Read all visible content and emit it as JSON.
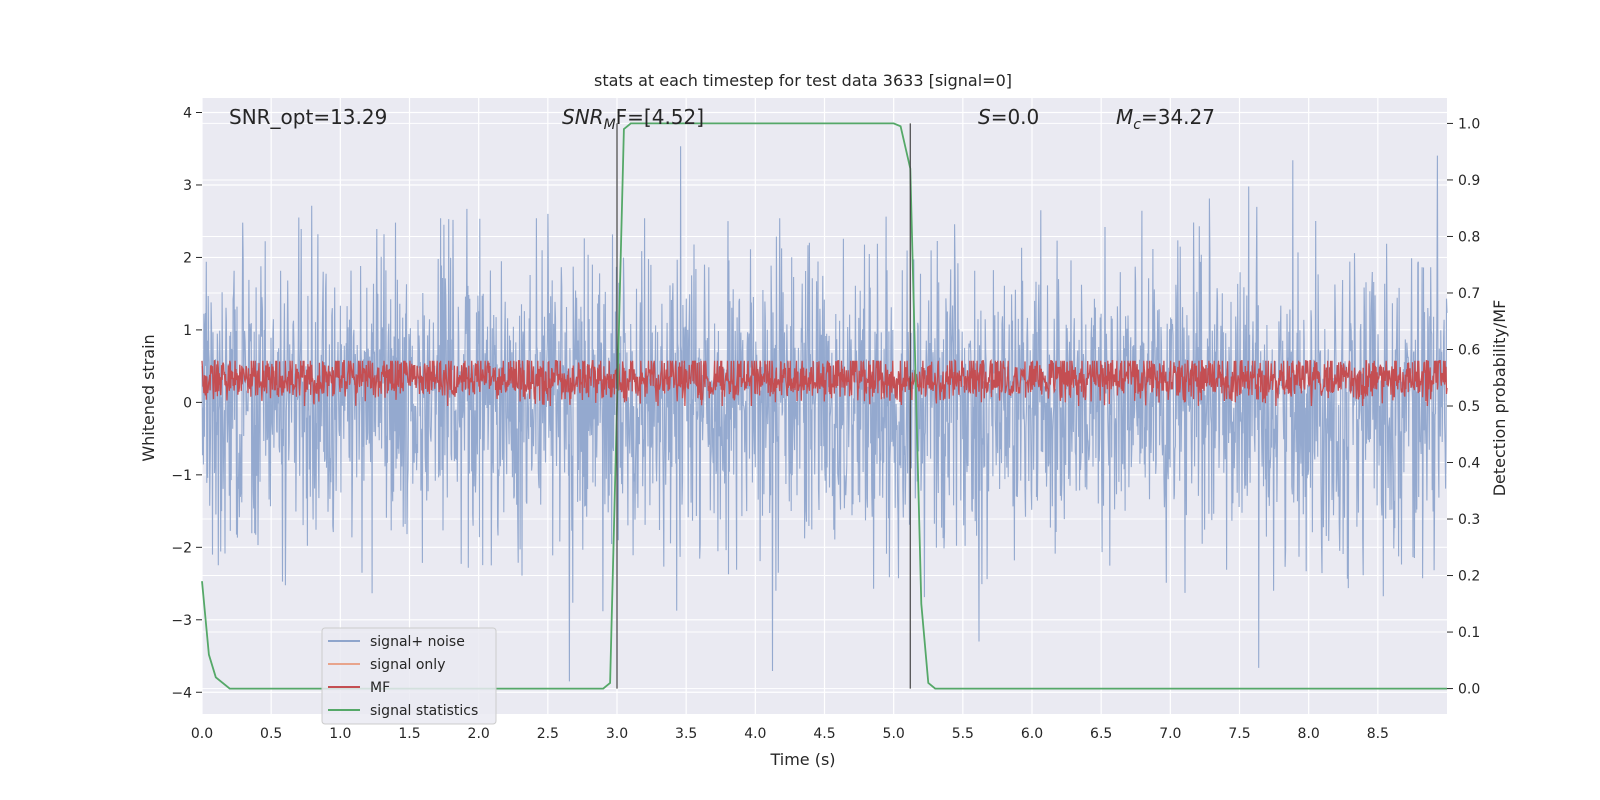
{
  "chart_data": {
    "type": "line",
    "title": "stats at each timestep for test data 3633 [signal=0]",
    "xlabel": "Time (s)",
    "ylabel": "Whitened strain",
    "y2label": "Detection probability/MF",
    "xlim": [
      0.0,
      9.0
    ],
    "ylim": [
      -4.3,
      4.2
    ],
    "y2lim": [
      -0.045,
      1.045
    ],
    "xticks": [
      "0.0",
      "0.5",
      "1.0",
      "1.5",
      "2.0",
      "2.5",
      "3.0",
      "3.5",
      "4.0",
      "4.5",
      "5.0",
      "5.5",
      "6.0",
      "6.5",
      "7.0",
      "7.5",
      "8.0",
      "8.5"
    ],
    "xtick_values": [
      0,
      0.5,
      1,
      1.5,
      2,
      2.5,
      3,
      3.5,
      4,
      4.5,
      5,
      5.5,
      6,
      6.5,
      7,
      7.5,
      8,
      8.5
    ],
    "yticks": [
      "4",
      "3",
      "2",
      "1",
      "0",
      "−1",
      "−2",
      "−3",
      "−4"
    ],
    "ytick_values": [
      4,
      3,
      2,
      1,
      0,
      -1,
      -2,
      -3,
      -4
    ],
    "y2ticks": [
      "1.0",
      "0.9",
      "0.8",
      "0.7",
      "0.6",
      "0.5",
      "0.4",
      "0.3",
      "0.2",
      "0.1",
      "0.0"
    ],
    "y2tick_values": [
      1.0,
      0.9,
      0.8,
      0.7,
      0.6,
      0.5,
      0.4,
      0.3,
      0.2,
      0.1,
      0.0
    ],
    "annotations": {
      "snr_opt": "SNR_opt=13.29",
      "snr_mf_base": "SNR",
      "snr_mf_sub": "M",
      "snr_mf_rest": "F=[4.52]",
      "s_stat_var": "S",
      "s_stat_rest": "=0.0",
      "mc_var": "M",
      "mc_sub": "c",
      "mc_rest": "=34.27"
    },
    "vlines": [
      3.0,
      5.12
    ],
    "series": [
      {
        "name": "signal+ noise",
        "color": "#8fa5cc",
        "axis": "left",
        "kind": "noise",
        "amplitude_sigma": 1.0,
        "peak_abs": 3.9
      },
      {
        "name": "signal only",
        "color": "#e8a48c",
        "axis": "left",
        "kind": "flat",
        "values": []
      },
      {
        "name": "MF",
        "color": "#c44e52",
        "axis": "left",
        "kind": "mf",
        "baseline": 0.05,
        "max": 1.0
      },
      {
        "name": "signal statistics",
        "color": "#55a868",
        "axis": "right",
        "x": [
          0.0,
          0.05,
          0.1,
          0.2,
          0.5,
          1.0,
          1.5,
          2.0,
          2.5,
          2.9,
          2.95,
          3.0,
          3.05,
          3.1,
          3.5,
          4.0,
          4.5,
          5.0,
          5.05,
          5.12,
          5.2,
          5.25,
          5.3,
          5.5,
          6.0,
          7.0,
          8.0,
          9.0
        ],
        "values": [
          0.19,
          0.06,
          0.02,
          0.0,
          0.0,
          0.0,
          0.0,
          0.0,
          0.0,
          0.0,
          0.01,
          0.5,
          0.99,
          1.0,
          1.0,
          1.0,
          1.0,
          1.0,
          0.995,
          0.92,
          0.15,
          0.01,
          0.0,
          0.0,
          0.0,
          0.0,
          0.0,
          0.0
        ]
      }
    ]
  }
}
